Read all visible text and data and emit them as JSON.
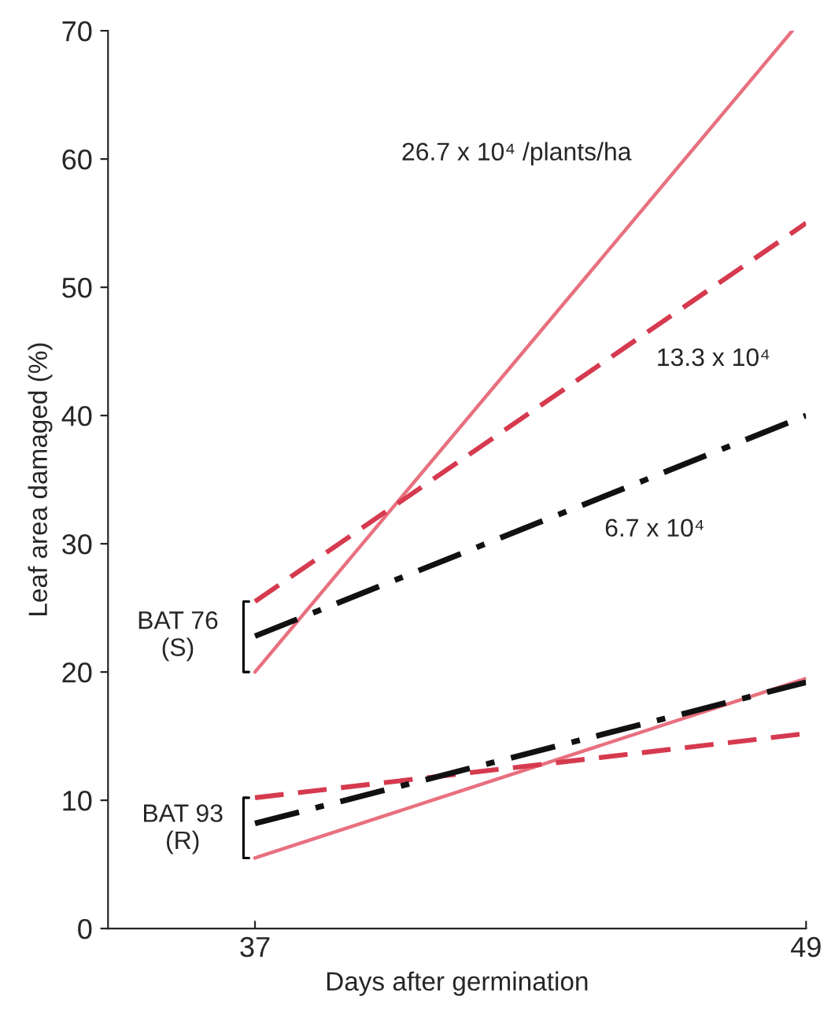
{
  "chart_data": {
    "type": "line",
    "xlabel": "Days after germination",
    "ylabel": "Leaf area damaged (%)",
    "xlim": [
      33.8,
      49
    ],
    "xticks": [
      37,
      49
    ],
    "ylim": [
      0,
      70
    ],
    "yticks": [
      0,
      10,
      20,
      30,
      40,
      50,
      60,
      70
    ],
    "grid": false,
    "legend": false,
    "series": [
      {
        "color": "#e8707f",
        "line_style": "solid",
        "x": [
          37,
          48.7
        ],
        "values": [
          20,
          70
        ]
      },
      {
        "color": "#d63a4f",
        "line_style": "dashed",
        "x": [
          37,
          49
        ],
        "values": [
          25.5,
          55
        ]
      },
      {
        "color": "#111111",
        "line_style": "dashdot",
        "x": [
          37,
          49
        ],
        "values": [
          22.8,
          40
        ]
      },
      {
        "color": "#e8707f",
        "line_style": "solid",
        "x": [
          37,
          49
        ],
        "values": [
          5.5,
          19.5
        ]
      },
      {
        "color": "#d63a4f",
        "line_style": "dashed",
        "x": [
          37,
          49
        ],
        "values": [
          10.2,
          15.2
        ]
      },
      {
        "color": "#111111",
        "line_style": "dashdot",
        "x": [
          37,
          49
        ],
        "values": [
          8.2,
          19.2
        ]
      }
    ],
    "annotations": [
      "26.7 x 10⁴ /plants/ha",
      "13.3 x 10⁴",
      "6.7 x 10⁴",
      "BAT 76\n(S)",
      "BAT 93\n(R)"
    ]
  }
}
